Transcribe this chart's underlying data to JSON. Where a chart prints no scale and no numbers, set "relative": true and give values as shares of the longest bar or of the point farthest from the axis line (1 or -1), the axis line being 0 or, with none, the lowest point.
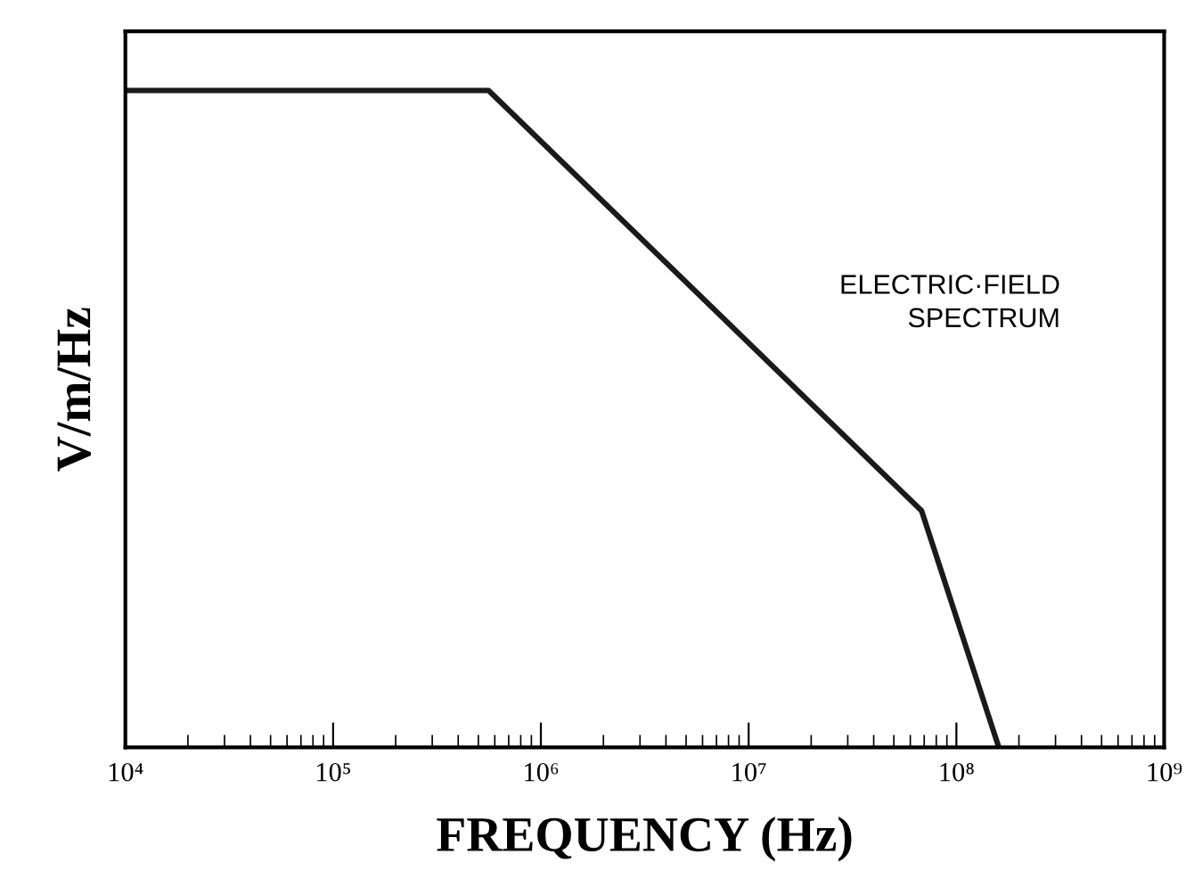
{
  "chart_data": {
    "type": "line",
    "relative": true,
    "xlabel": "FREQUENCY (Hz)",
    "ylabel": "V/m/Hz",
    "x": [
      10000,
      560000,
      68000000,
      160000000
    ],
    "series": [
      {
        "color": "#1a1a1a",
        "values": [
          1,
          1,
          0.36,
          0
        ]
      }
    ],
    "log": "x",
    "xlim": [
      10000,
      1000000000
    ],
    "xticks": [
      {
        "value": 10000,
        "label": "10⁴"
      },
      {
        "value": 100000,
        "label": "10⁵"
      },
      {
        "value": 1000000,
        "label": "10⁶"
      },
      {
        "value": 10000000,
        "label": "10⁷"
      },
      {
        "value": 100000000,
        "label": "10⁸"
      },
      {
        "value": 1000000000,
        "label": "10⁹"
      }
    ],
    "annotations": [
      "ELECTRIC·FIELD\nSPECTRUM"
    ],
    "grid": false,
    "marker": "none",
    "line_style": "solid"
  }
}
